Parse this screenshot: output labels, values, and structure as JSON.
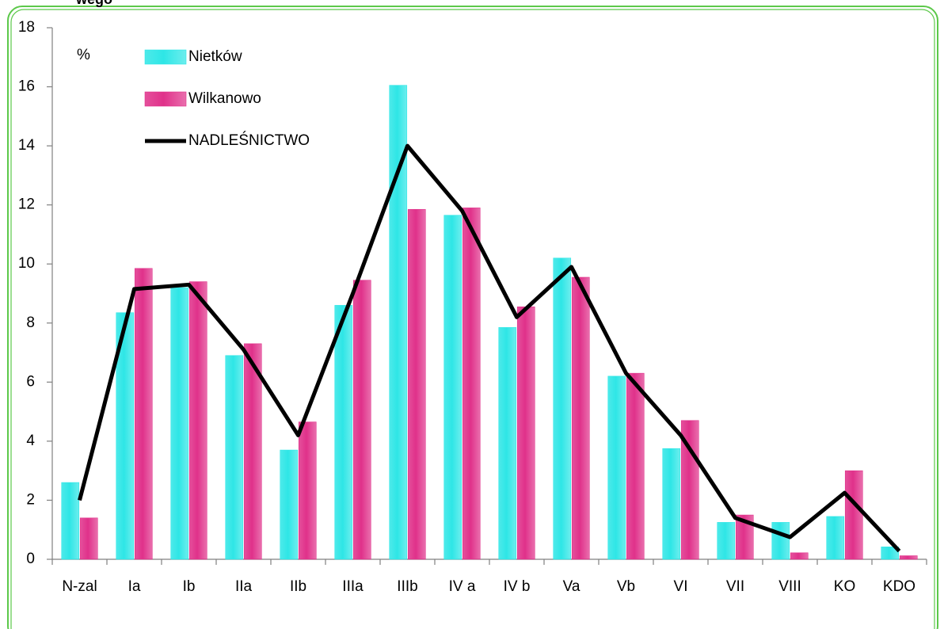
{
  "chart_data": {
    "type": "bar_line",
    "title": "wego",
    "ylabel": "%",
    "categories": [
      "N-zal",
      "Ia",
      "Ib",
      "IIa",
      "IIb",
      "IIIa",
      "IIIb",
      "IV a",
      "IV b",
      "Va",
      "Vb",
      "VI",
      "VII",
      "VIII",
      "KO",
      "KDO"
    ],
    "series": [
      {
        "name": "Nietków",
        "color": "#2ee6e6",
        "kind": "bar",
        "values": [
          2.6,
          8.35,
          9.2,
          6.9,
          3.7,
          8.6,
          16.05,
          11.65,
          7.85,
          10.2,
          6.2,
          3.75,
          1.25,
          1.25,
          1.45,
          0.42
        ]
      },
      {
        "name": "Wilkanowo",
        "color": "#e0318a",
        "kind": "bar",
        "values": [
          1.4,
          9.85,
          9.4,
          7.3,
          4.65,
          9.45,
          11.85,
          11.9,
          8.55,
          9.55,
          6.3,
          4.7,
          1.5,
          0.22,
          3.0,
          0.12
        ]
      },
      {
        "name": "NADLEŚNICTWO",
        "color": "#000000",
        "kind": "line",
        "values": [
          2.0,
          9.15,
          9.3,
          7.1,
          4.2,
          9.0,
          14.0,
          11.8,
          8.2,
          9.9,
          6.3,
          4.2,
          1.4,
          0.75,
          2.25,
          0.28
        ]
      }
    ],
    "ylim": [
      0,
      18
    ],
    "yticks": [
      0,
      2,
      4,
      6,
      8,
      10,
      12,
      14,
      16,
      18
    ],
    "legend": "top-left"
  }
}
